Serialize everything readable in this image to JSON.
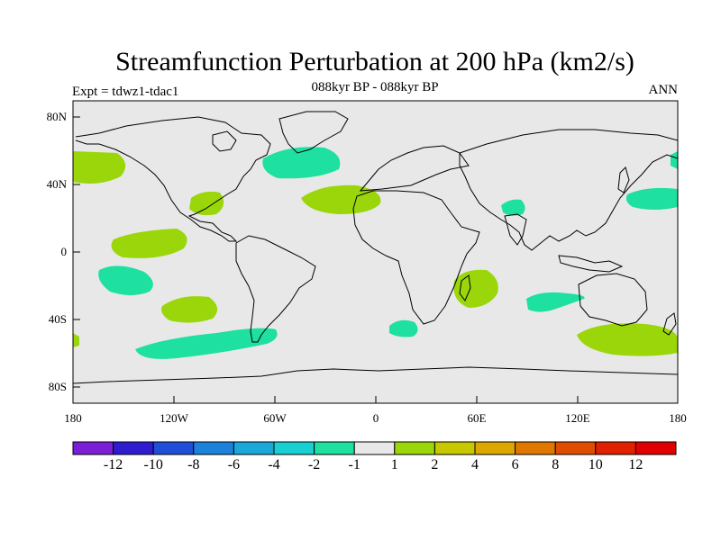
{
  "header": {
    "title": "Streamfunction Perturbation at 200 hPa (km2/s)",
    "subtitle": "088kyr BP - 088kyr BP",
    "left_label": "Expt = tdwz1-tdac1",
    "right_label": "ANN"
  },
  "axes": {
    "y_ticks": [
      "80N",
      "40N",
      "0",
      "40S",
      "80S"
    ],
    "x_ticks": [
      "180",
      "120W",
      "60W",
      "0",
      "60E",
      "120E",
      "180"
    ]
  },
  "colorbar": {
    "labels": [
      "-12",
      "-10",
      "-8",
      "-6",
      "-4",
      "-2",
      "-1",
      "1",
      "2",
      "4",
      "6",
      "8",
      "10",
      "12"
    ],
    "colors": [
      "#7a1fd6",
      "#2f1bd0",
      "#1f4fd8",
      "#1b82dc",
      "#19a8d8",
      "#18cfd2",
      "#1ee0a0",
      "#e8e8e8",
      "#9ad60a",
      "#c8c800",
      "#dca800",
      "#e07800",
      "#e04c00",
      "#e02000",
      "#e00000"
    ]
  },
  "colors": {
    "ocean": "#e8e8e8",
    "negative_anomaly": "#1ee0a0",
    "positive_anomaly": "#9ad60a"
  }
}
